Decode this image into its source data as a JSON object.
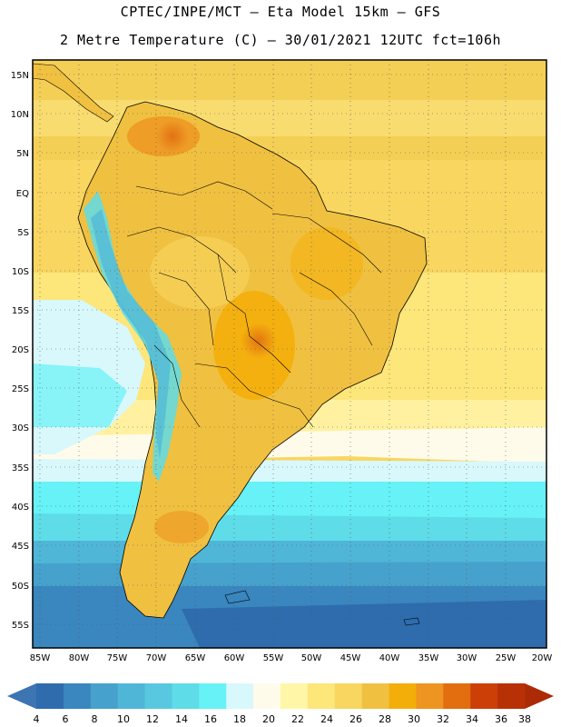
{
  "header": {
    "line1": "CPTEC/INPE/MCT –  Eta Model 15km – GFS",
    "line2": "2 Metre Temperature (C) – 30/01/2021 12UTC fct=106h"
  },
  "map": {
    "lat_labels": [
      "15N",
      "10N",
      "5N",
      "EQ",
      "5S",
      "10S",
      "15S",
      "20S",
      "25S",
      "30S",
      "35S",
      "40S",
      "45S",
      "50S",
      "55S"
    ],
    "lon_labels": [
      "85W",
      "80W",
      "75W",
      "70W",
      "65W",
      "60W",
      "55W",
      "50W",
      "45W",
      "40W",
      "35W",
      "30W",
      "25W",
      "20W"
    ],
    "lat_range": [
      16.5,
      -57.5
    ],
    "lon_range": [
      -86.5,
      -20.5
    ]
  },
  "colorbar": {
    "levels": [
      "4",
      "6",
      "8",
      "10",
      "12",
      "14",
      "16",
      "18",
      "20",
      "22",
      "24",
      "26",
      "28",
      "30",
      "32",
      "34",
      "36",
      "38"
    ],
    "colors": [
      "#2e6cae",
      "#3a86be",
      "#46a2cc",
      "#4fb6d8",
      "#58c8e0",
      "#5edce8",
      "#66f2f6",
      "#d8f8fc",
      "#fffbea",
      "#fff6a8",
      "#fde67a",
      "#f8d660",
      "#f0c040",
      "#f4ae0a",
      "#ee9420",
      "#e26e10",
      "#cc4008",
      "#b83006"
    ]
  }
}
